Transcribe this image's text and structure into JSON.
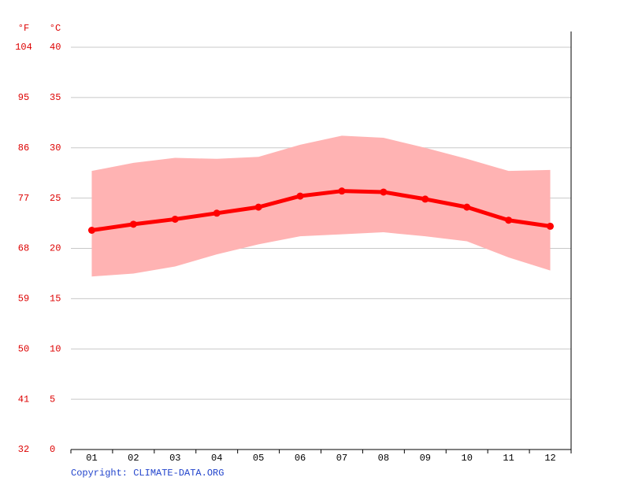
{
  "chart_data": {
    "type": "line",
    "y_label": "°C",
    "y2_label": "°F",
    "categories": [
      "01",
      "02",
      "03",
      "04",
      "05",
      "06",
      "07",
      "08",
      "09",
      "10",
      "11",
      "12"
    ],
    "series": [
      {
        "color": "#ff0000",
        "values": [
          21.8,
          22.4,
          22.9,
          23.5,
          24.1,
          25.2,
          25.7,
          25.6,
          24.9,
          24.1,
          22.8,
          22.2
        ]
      }
    ],
    "band": {
      "color": "#ffb3b3",
      "high": [
        27.7,
        28.5,
        29.0,
        28.9,
        29.1,
        30.3,
        31.2,
        31.0,
        30.0,
        28.9,
        27.7,
        27.8
      ],
      "low": [
        17.2,
        17.5,
        18.2,
        19.4,
        20.4,
        21.2,
        21.4,
        21.6,
        21.2,
        20.7,
        19.1,
        17.8
      ]
    },
    "ylim": [
      0,
      40
    ],
    "yticks": [
      0,
      5,
      10,
      15,
      20,
      25,
      30,
      35,
      40
    ],
    "y2lim": [
      32,
      104
    ],
    "y2ticks": [
      32,
      41,
      50,
      59,
      68,
      77,
      86,
      95,
      104
    ],
    "grid": true,
    "copyright": "Copyright: CLIMATE-DATA.ORG"
  }
}
